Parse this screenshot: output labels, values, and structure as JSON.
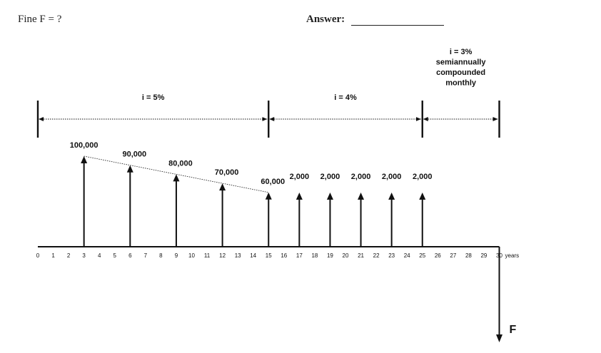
{
  "header": {
    "question": "Fine F = ?",
    "answer_label": "Answer:"
  },
  "diagram": {
    "periods": [
      {
        "from": 0,
        "to": 15,
        "label": [
          "i = 5%"
        ]
      },
      {
        "from": 15,
        "to": 25,
        "label": [
          "i = 4%"
        ]
      },
      {
        "from": 25,
        "to": 30,
        "label": [
          "i = 3%",
          "semiannually",
          "compounded",
          "monthly"
        ]
      }
    ],
    "axis_ticks": [
      "0",
      "1",
      "2",
      "3",
      "4",
      "5",
      "6",
      "7",
      "8",
      "9",
      "10",
      "11",
      "12",
      "13",
      "14",
      "15",
      "16",
      "17",
      "18",
      "19",
      "20",
      "21",
      "22",
      "23",
      "24",
      "25",
      "26",
      "27",
      "28",
      "29",
      "30"
    ],
    "axis_end_label": "years",
    "cash_flows": [
      {
        "year": 3,
        "amount": 100000,
        "label": "100,000"
      },
      {
        "year": 6,
        "amount": 90000,
        "label": "90,000"
      },
      {
        "year": 9,
        "amount": 80000,
        "label": "80,000"
      },
      {
        "year": 12,
        "amount": 70000,
        "label": "70,000"
      },
      {
        "year": 15,
        "amount": 60000,
        "label": "60,000"
      },
      {
        "year": 17,
        "amount": 2000,
        "label": "2,000"
      },
      {
        "year": 19,
        "amount": 2000,
        "label": "2,000"
      },
      {
        "year": 21,
        "amount": 2000,
        "label": "2,000"
      },
      {
        "year": 23,
        "amount": 2000,
        "label": "2,000"
      },
      {
        "year": 25,
        "amount": 2000,
        "label": "2,000"
      }
    ],
    "future_value": {
      "year": 30,
      "label": "F"
    }
  }
}
